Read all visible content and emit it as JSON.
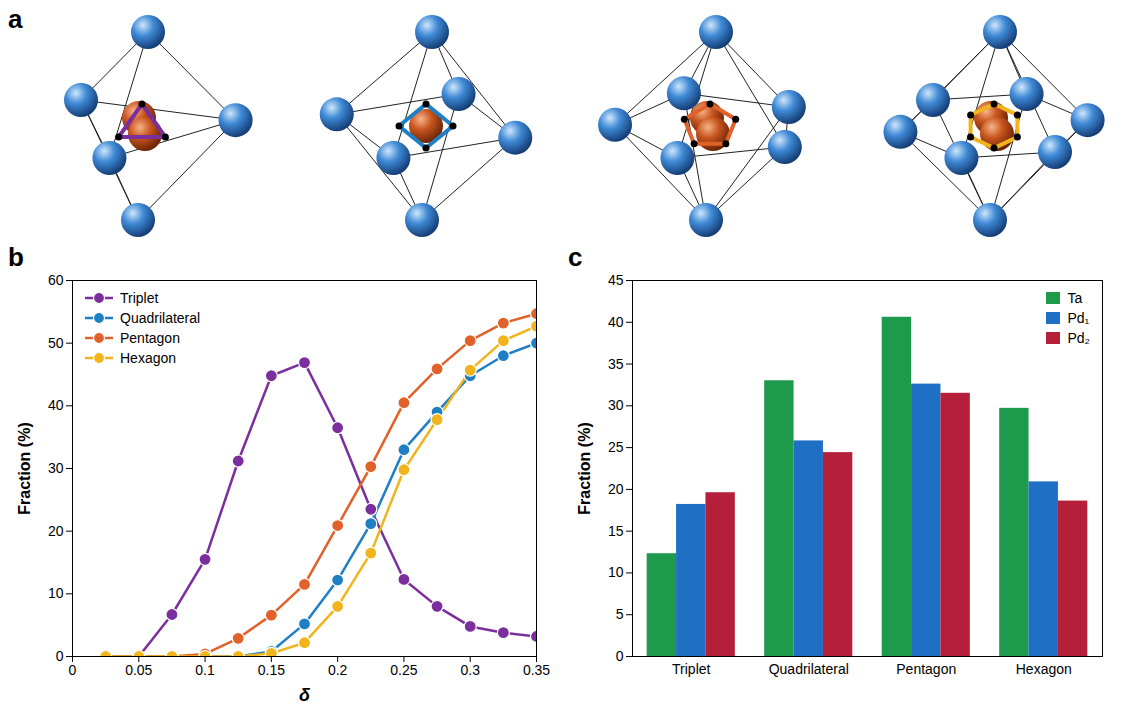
{
  "diagram": {
    "panel": "a"
  },
  "chart_data": [
    {
      "panel": "b",
      "type": "line",
      "x": [
        0.025,
        0.05,
        0.075,
        0.1,
        0.125,
        0.15,
        0.175,
        0.2,
        0.225,
        0.25,
        0.275,
        0.3,
        0.325,
        0.35
      ],
      "series": [
        {
          "name": "Triplet",
          "color": "#7b2f9e",
          "values": [
            0,
            0,
            6.7,
            15.5,
            31.2,
            44.8,
            46.9,
            36.5,
            23.5,
            12.3,
            8.0,
            4.8,
            3.8,
            3.2
          ]
        },
        {
          "name": "Quadrilateral",
          "color": "#1f7fc4",
          "values": [
            0,
            0,
            0,
            0,
            0,
            0.8,
            5.2,
            12.2,
            21.2,
            33.0,
            39.0,
            44.8,
            48.0,
            50.0
          ]
        },
        {
          "name": "Pentagon",
          "color": "#e0622a",
          "values": [
            0,
            0,
            0,
            0.4,
            2.9,
            6.6,
            11.5,
            20.9,
            30.3,
            40.5,
            45.9,
            50.4,
            53.2,
            54.7
          ]
        },
        {
          "name": "Hexagon",
          "color": "#f2b41c",
          "values": [
            0,
            0,
            0,
            0,
            0,
            0.5,
            2.2,
            8.0,
            16.5,
            29.8,
            37.8,
            45.7,
            50.4,
            52.7
          ]
        }
      ],
      "xlabel": "δ",
      "ylabel": "Fraction (%)",
      "xlim": [
        0,
        0.35
      ],
      "xticks": [
        0,
        0.05,
        0.1,
        0.15,
        0.2,
        0.25,
        0.3,
        0.35
      ],
      "ylim": [
        0,
        60
      ],
      "yticks": [
        0,
        10,
        20,
        30,
        40,
        50,
        60
      ],
      "legend": "top-left",
      "marker": "circle"
    },
    {
      "panel": "c",
      "type": "bar",
      "categories": [
        "Triplet",
        "Quadrilateral",
        "Pentagon",
        "Hexagon"
      ],
      "series": [
        {
          "name": "Ta",
          "color": "#1e9a4c",
          "values": [
            12.3,
            33.0,
            40.6,
            29.7
          ]
        },
        {
          "name": "Pd₁",
          "color": "#1f6fc5",
          "values": [
            18.2,
            25.8,
            32.6,
            20.9
          ]
        },
        {
          "name": "Pd₂",
          "color": "#b51f3a",
          "values": [
            19.6,
            24.4,
            31.5,
            18.6
          ]
        }
      ],
      "ylabel": "Fraction (%)",
      "ylim": [
        0,
        45
      ],
      "yticks": [
        0,
        5,
        10,
        15,
        20,
        25,
        30,
        35,
        40,
        45
      ],
      "legend": "top-right"
    }
  ]
}
